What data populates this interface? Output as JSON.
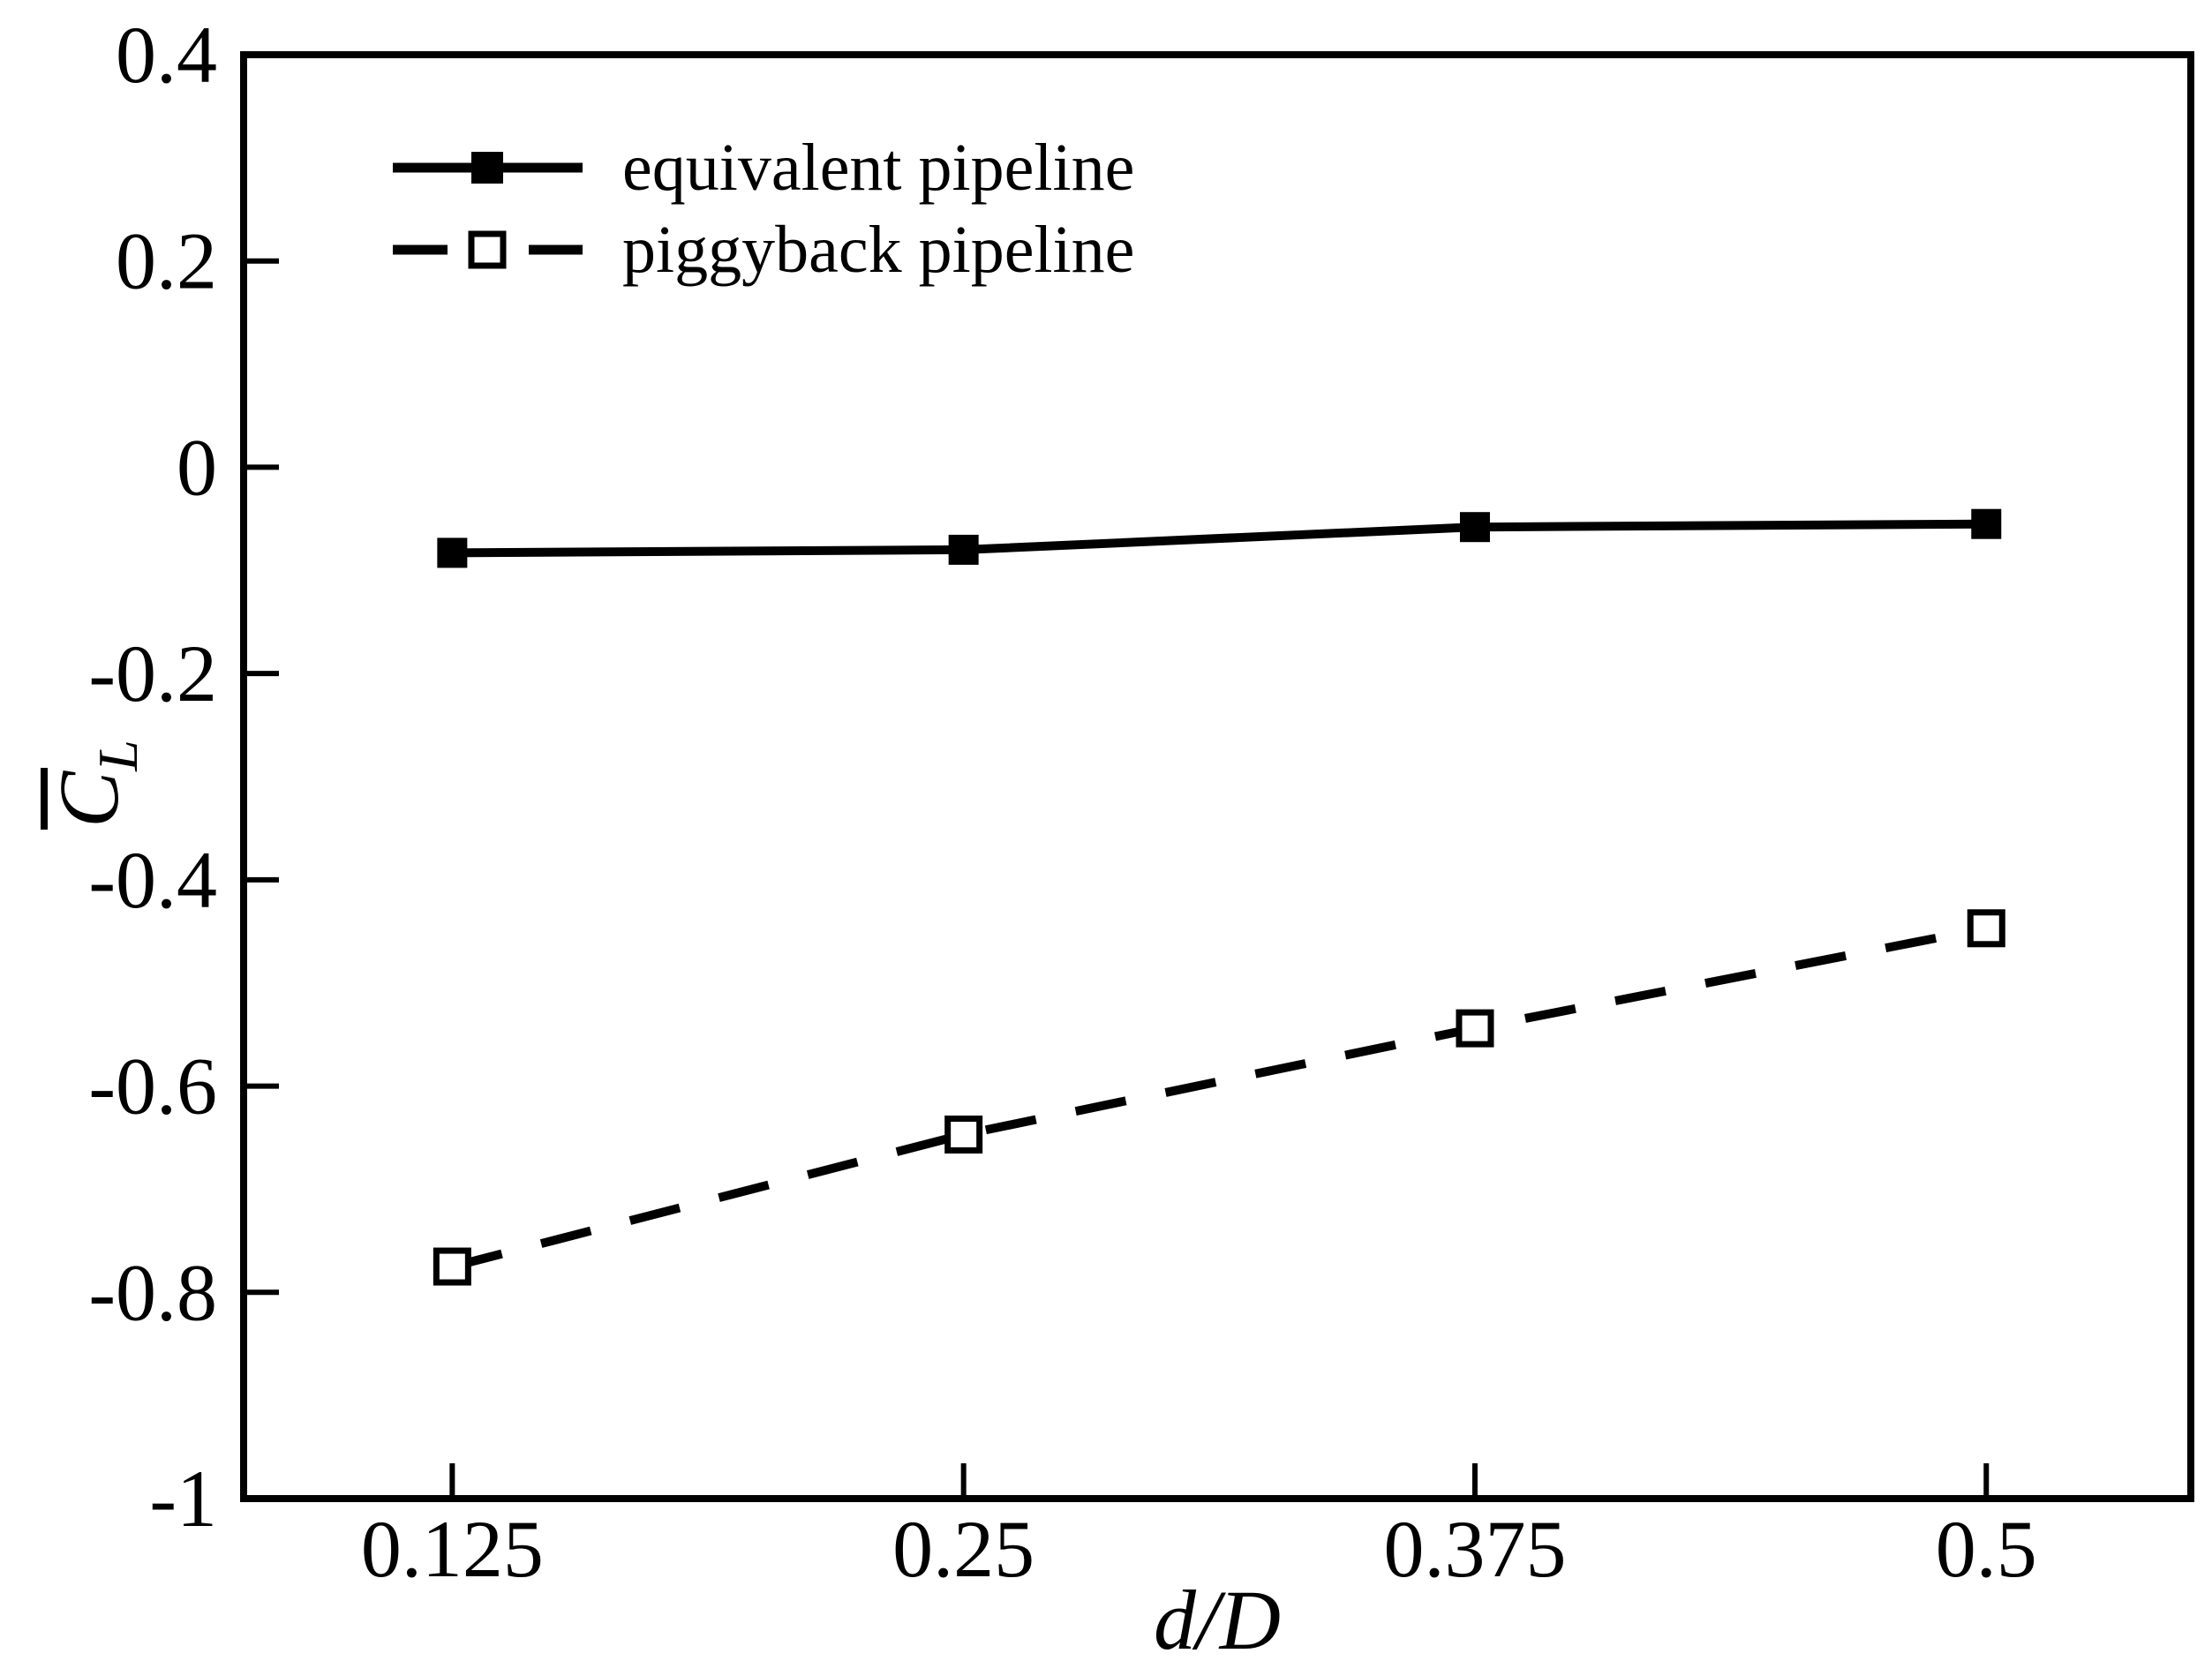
{
  "figure": {
    "background": "#ffffff",
    "ink": "#000000"
  },
  "chart_data": {
    "type": "line",
    "title": "",
    "xlabel": "d/D",
    "ylabel": {
      "text": "CL",
      "base": "C",
      "overbar": true,
      "subscript": "L"
    },
    "x": [
      0.125,
      0.25,
      0.375,
      0.5
    ],
    "series": [
      {
        "name": "equivalent pipeline",
        "values": [
          -0.083,
          -0.08,
          -0.058,
          -0.055
        ],
        "line_style": "solid",
        "marker": "filled-square"
      },
      {
        "name": "piggyback pipeline",
        "values": [
          -0.775,
          -0.647,
          -0.544,
          -0.447
        ],
        "line_style": "dashed",
        "marker": "open-square"
      }
    ],
    "x_ticks": [
      0.125,
      0.25,
      0.375,
      0.5
    ],
    "x_tick_labels": [
      "0.125",
      "0.25",
      "0.375",
      "0.5"
    ],
    "y_ticks": [
      0.4,
      0.2,
      0,
      -0.2,
      -0.4,
      -0.6,
      -0.8,
      -1
    ],
    "y_tick_labels": [
      "0.4",
      "0.2",
      "0",
      "-0.2",
      "-0.4",
      "-0.6",
      "-0.8",
      "-1"
    ],
    "xlim": [
      0.074,
      0.55
    ],
    "ylim": [
      -1,
      0.4
    ],
    "grid": false,
    "legend_position": "upper-left-inside"
  }
}
